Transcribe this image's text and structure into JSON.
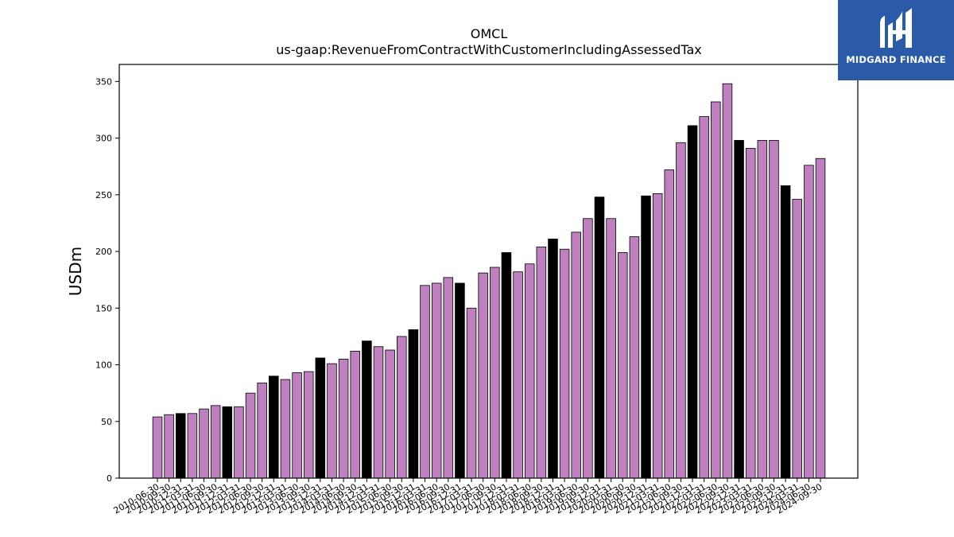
{
  "brand": {
    "name": "MIDGARD FINANCE",
    "background": "#2a5aa8"
  },
  "chart_data": {
    "type": "bar",
    "title": "OMCL",
    "subtitle": "us-gaap:RevenueFromContractWithCustomerIncludingAssessedTax",
    "ylabel": "USDm",
    "xlabel": "",
    "ylim": [
      0,
      365
    ],
    "yticks": [
      0,
      50,
      100,
      150,
      200,
      250,
      300,
      350
    ],
    "grid": false,
    "colors": {
      "quarter": "#bf80bf",
      "year_end": "#000000",
      "edge": "#000000"
    },
    "categories": [
      "2010-06-30",
      "2010-09-30",
      "2010-12-31",
      "2011-03-31",
      "2011-06-30",
      "2011-09-30",
      "2011-12-31",
      "2012-03-31",
      "2012-06-30",
      "2012-09-30",
      "2012-12-31",
      "2013-03-31",
      "2013-06-30",
      "2013-09-30",
      "2013-12-31",
      "2014-03-31",
      "2014-06-30",
      "2014-09-30",
      "2014-12-31",
      "2015-03-31",
      "2015-06-30",
      "2015-09-30",
      "2015-12-31",
      "2016-03-31",
      "2016-06-30",
      "2016-09-30",
      "2016-12-31",
      "2017-03-31",
      "2017-06-30",
      "2017-09-30",
      "2017-12-31",
      "2018-03-31",
      "2018-06-30",
      "2018-09-30",
      "2018-12-31",
      "2019-03-31",
      "2019-06-30",
      "2019-09-30",
      "2019-12-31",
      "2020-03-31",
      "2020-06-30",
      "2020-09-30",
      "2020-12-31",
      "2021-03-31",
      "2021-06-30",
      "2021-09-30",
      "2021-12-31",
      "2022-03-31",
      "2022-06-30",
      "2022-09-30",
      "2022-12-31",
      "2023-03-31",
      "2023-06-30",
      "2023-09-30",
      "2023-12-31",
      "2024-03-31",
      "2024-06-30",
      "2024-09-30"
    ],
    "values": [
      54,
      56,
      57,
      57,
      61,
      64,
      63,
      63,
      75,
      84,
      90,
      87,
      93,
      94,
      106,
      101,
      105,
      112,
      121,
      116,
      113,
      125,
      131,
      170,
      172,
      177,
      172,
      150,
      181,
      186,
      199,
      182,
      189,
      204,
      211,
      202,
      217,
      229,
      248,
      229,
      199,
      213,
      249,
      251,
      272,
      296,
      311,
      319,
      332,
      348,
      298,
      291,
      298,
      298,
      258,
      246,
      276,
      282
    ]
  }
}
